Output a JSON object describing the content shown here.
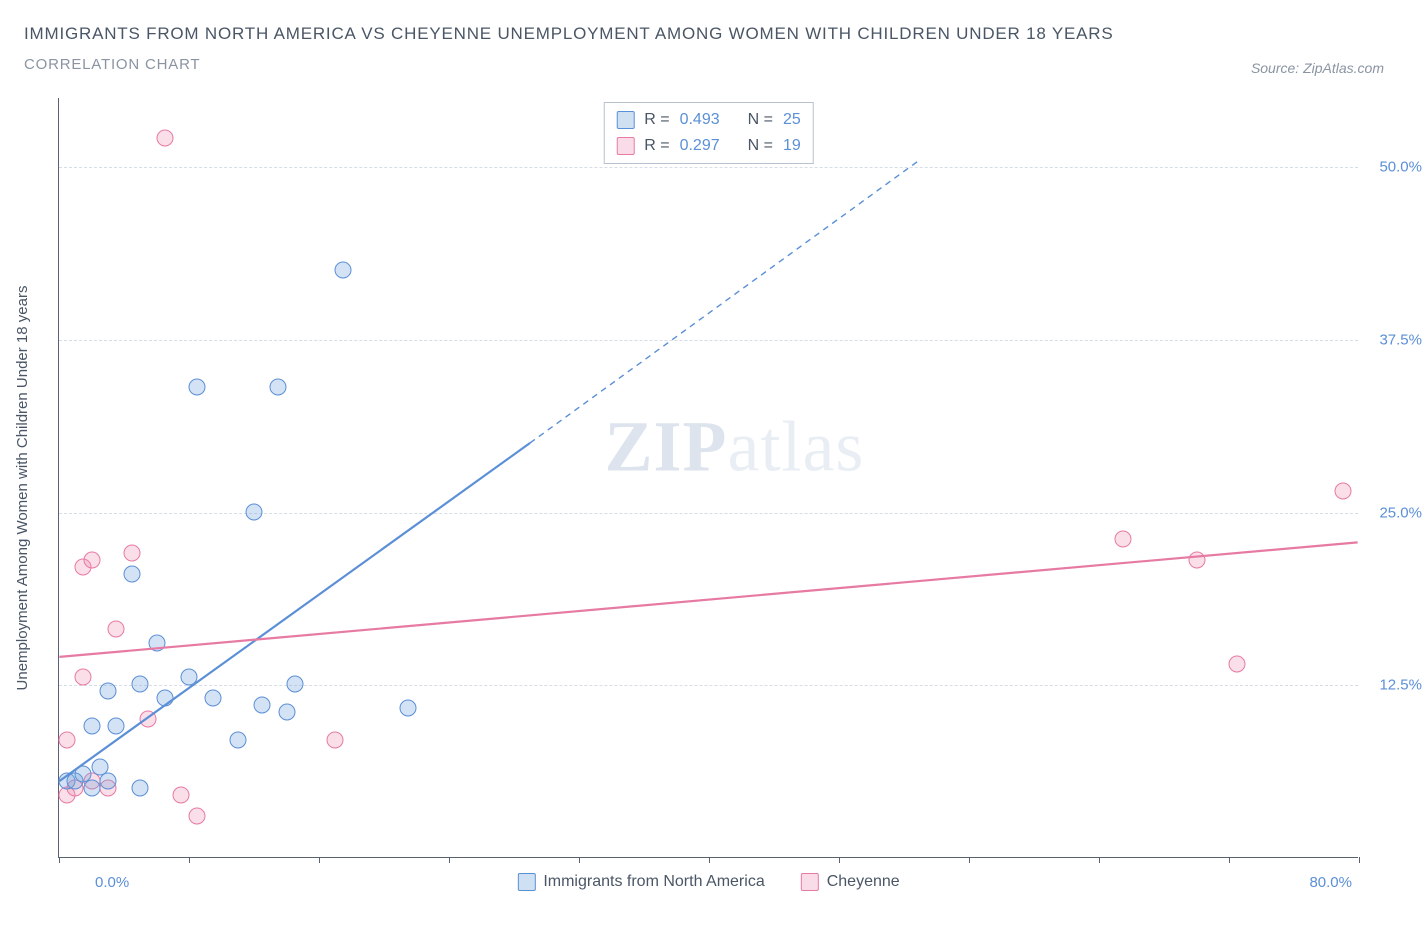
{
  "title": "IMMIGRANTS FROM NORTH AMERICA VS CHEYENNE UNEMPLOYMENT AMONG WOMEN WITH CHILDREN UNDER 18 YEARS",
  "subtitle": "CORRELATION CHART",
  "source": "Source: ZipAtlas.com",
  "ylabel": "Unemployment Among Women with Children Under 18 years",
  "watermark_a": "ZIP",
  "watermark_b": "atlas",
  "chart": {
    "type": "scatter",
    "xlim": [
      0,
      80
    ],
    "ylim": [
      0,
      55
    ],
    "x_min_label": "0.0%",
    "x_max_label": "80.0%",
    "xticks": [
      0,
      8,
      16,
      24,
      32,
      40,
      48,
      56,
      64,
      72,
      80
    ],
    "yticks": [
      {
        "v": 12.5,
        "label": "12.5%"
      },
      {
        "v": 25.0,
        "label": "25.0%"
      },
      {
        "v": 37.5,
        "label": "37.5%"
      },
      {
        "v": 50.0,
        "label": "50.0%"
      }
    ],
    "grid_color": "#d6dde6",
    "axis_color": "#596270",
    "background_color": "#ffffff"
  },
  "legend_top": {
    "rows": [
      {
        "swatch": "blue",
        "r_label": "R =",
        "r": "0.493",
        "n_label": "N =",
        "n": "25"
      },
      {
        "swatch": "pink",
        "r_label": "R =",
        "r": "0.297",
        "n_label": "N =",
        "n": "19"
      }
    ]
  },
  "legend_bottom": [
    {
      "swatch": "blue",
      "label": "Immigrants from North America"
    },
    {
      "swatch": "pink",
      "label": "Cheyenne"
    }
  ],
  "series_blue": {
    "color_fill": "rgba(118,166,222,0.32)",
    "color_stroke": "#5b8fd6",
    "marker_size": 17,
    "trend": {
      "x1": 0,
      "y1": 5.5,
      "x2": 29,
      "y2": 30.0,
      "x2_dash": 53,
      "y2_dash": 50.5,
      "stroke_width": 2.2
    },
    "points": [
      [
        0.5,
        5.5
      ],
      [
        1.0,
        5.5
      ],
      [
        1.5,
        6.0
      ],
      [
        2.0,
        5.0
      ],
      [
        2.5,
        6.5
      ],
      [
        3.0,
        5.5
      ],
      [
        5.0,
        5.0
      ],
      [
        2.0,
        9.5
      ],
      [
        3.5,
        9.5
      ],
      [
        3.0,
        12.0
      ],
      [
        5.0,
        12.5
      ],
      [
        6.5,
        11.5
      ],
      [
        8.0,
        13.0
      ],
      [
        9.5,
        11.5
      ],
      [
        14.5,
        12.5
      ],
      [
        11.0,
        8.5
      ],
      [
        12.5,
        11.0
      ],
      [
        14.0,
        10.5
      ],
      [
        21.5,
        10.8
      ],
      [
        6.0,
        15.5
      ],
      [
        4.5,
        20.5
      ],
      [
        12.0,
        25.0
      ],
      [
        8.5,
        34.0
      ],
      [
        13.5,
        34.0
      ],
      [
        17.5,
        42.5
      ]
    ]
  },
  "series_pink": {
    "color_fill": "rgba(236,140,174,0.28)",
    "color_stroke": "#e77aa3",
    "marker_size": 17,
    "trend": {
      "x1": 0,
      "y1": 14.5,
      "x2": 80,
      "y2": 22.8,
      "stroke_width": 2.2
    },
    "points": [
      [
        0.5,
        4.5
      ],
      [
        1.0,
        5.0
      ],
      [
        2.0,
        5.5
      ],
      [
        3.0,
        5.0
      ],
      [
        7.5,
        4.5
      ],
      [
        8.5,
        3.0
      ],
      [
        0.5,
        8.5
      ],
      [
        1.5,
        13.0
      ],
      [
        5.5,
        10.0
      ],
      [
        3.5,
        16.5
      ],
      [
        1.5,
        21.0
      ],
      [
        2.0,
        21.5
      ],
      [
        4.5,
        22.0
      ],
      [
        17.0,
        8.5
      ],
      [
        6.5,
        52.0
      ],
      [
        65.5,
        23.0
      ],
      [
        70.0,
        21.5
      ],
      [
        72.5,
        14.0
      ],
      [
        79.0,
        26.5
      ]
    ]
  }
}
